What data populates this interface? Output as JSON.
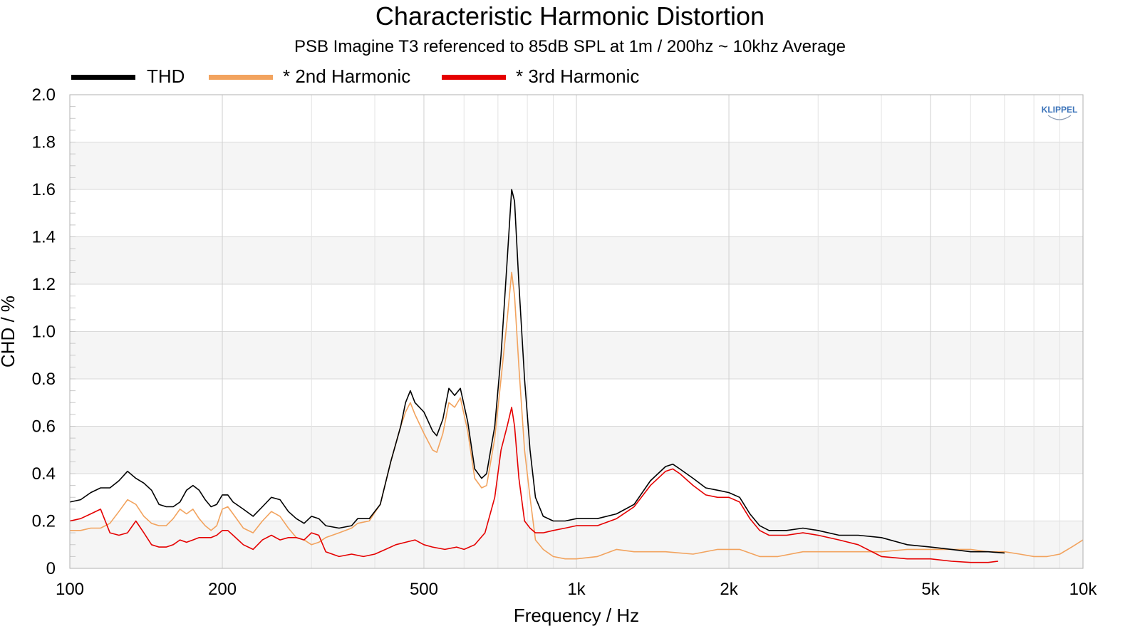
{
  "chart_data": {
    "type": "line",
    "title": "Characteristic Harmonic Distortion",
    "subtitle": "PSB Imagine T3 referenced to 85dB SPL at 1m / 200hz ~ 10khz Average",
    "xlabel": "Frequency / Hz",
    "ylabel": "CHD / %",
    "x_scale": "log",
    "xlim": [
      100,
      10000
    ],
    "ylim": [
      0,
      2.0
    ],
    "x_tick_values": [
      100,
      200,
      500,
      1000,
      2000,
      5000,
      10000
    ],
    "x_tick_labels": [
      "100",
      "200",
      "500",
      "1k",
      "2k",
      "5k",
      "10k"
    ],
    "y_tick_values": [
      0,
      0.2,
      0.4,
      0.6,
      0.8,
      1.0,
      1.2,
      1.4,
      1.6,
      1.8,
      2.0
    ],
    "y_tick_labels": [
      "0",
      "0.2",
      "0.4",
      "0.6",
      "0.8",
      "1.0",
      "1.2",
      "1.4",
      "1.6",
      "1.8",
      "2.0"
    ],
    "grid": true,
    "legend_position": "top-left",
    "watermark": "KLIPPEL",
    "series": [
      {
        "name": "THD",
        "color": "#000000",
        "points": [
          [
            100,
            0.28
          ],
          [
            105,
            0.29
          ],
          [
            110,
            0.32
          ],
          [
            115,
            0.34
          ],
          [
            120,
            0.34
          ],
          [
            125,
            0.37
          ],
          [
            130,
            0.41
          ],
          [
            135,
            0.38
          ],
          [
            140,
            0.36
          ],
          [
            145,
            0.33
          ],
          [
            150,
            0.27
          ],
          [
            155,
            0.26
          ],
          [
            160,
            0.26
          ],
          [
            165,
            0.28
          ],
          [
            170,
            0.33
          ],
          [
            175,
            0.35
          ],
          [
            180,
            0.33
          ],
          [
            185,
            0.29
          ],
          [
            190,
            0.26
          ],
          [
            195,
            0.27
          ],
          [
            200,
            0.31
          ],
          [
            205,
            0.31
          ],
          [
            210,
            0.28
          ],
          [
            220,
            0.25
          ],
          [
            230,
            0.22
          ],
          [
            240,
            0.26
          ],
          [
            250,
            0.3
          ],
          [
            260,
            0.29
          ],
          [
            270,
            0.24
          ],
          [
            280,
            0.21
          ],
          [
            290,
            0.19
          ],
          [
            300,
            0.22
          ],
          [
            310,
            0.21
          ],
          [
            320,
            0.18
          ],
          [
            340,
            0.17
          ],
          [
            360,
            0.18
          ],
          [
            370,
            0.21
          ],
          [
            390,
            0.21
          ],
          [
            410,
            0.27
          ],
          [
            430,
            0.45
          ],
          [
            450,
            0.6
          ],
          [
            460,
            0.7
          ],
          [
            470,
            0.75
          ],
          [
            480,
            0.7
          ],
          [
            500,
            0.66
          ],
          [
            520,
            0.58
          ],
          [
            530,
            0.56
          ],
          [
            545,
            0.63
          ],
          [
            560,
            0.76
          ],
          [
            575,
            0.73
          ],
          [
            590,
            0.76
          ],
          [
            610,
            0.62
          ],
          [
            630,
            0.42
          ],
          [
            650,
            0.38
          ],
          [
            665,
            0.4
          ],
          [
            690,
            0.6
          ],
          [
            710,
            0.9
          ],
          [
            730,
            1.3
          ],
          [
            745,
            1.6
          ],
          [
            755,
            1.55
          ],
          [
            770,
            1.2
          ],
          [
            790,
            0.8
          ],
          [
            810,
            0.5
          ],
          [
            830,
            0.3
          ],
          [
            860,
            0.22
          ],
          [
            900,
            0.2
          ],
          [
            950,
            0.2
          ],
          [
            1000,
            0.21
          ],
          [
            1100,
            0.21
          ],
          [
            1200,
            0.23
          ],
          [
            1300,
            0.27
          ],
          [
            1400,
            0.37
          ],
          [
            1500,
            0.43
          ],
          [
            1550,
            0.44
          ],
          [
            1600,
            0.42
          ],
          [
            1700,
            0.38
          ],
          [
            1800,
            0.34
          ],
          [
            1900,
            0.33
          ],
          [
            2000,
            0.32
          ],
          [
            2100,
            0.3
          ],
          [
            2200,
            0.23
          ],
          [
            2300,
            0.18
          ],
          [
            2400,
            0.16
          ],
          [
            2600,
            0.16
          ],
          [
            2800,
            0.17
          ],
          [
            3000,
            0.16
          ],
          [
            3300,
            0.14
          ],
          [
            3600,
            0.14
          ],
          [
            4000,
            0.13
          ],
          [
            4500,
            0.1
          ],
          [
            5000,
            0.09
          ],
          [
            5500,
            0.08
          ],
          [
            6000,
            0.07
          ],
          [
            6500,
            0.07
          ],
          [
            7000,
            0.065
          ]
        ]
      },
      {
        "name": "* 2nd Harmonic",
        "color": "#f2a35e",
        "points": [
          [
            100,
            0.16
          ],
          [
            105,
            0.16
          ],
          [
            110,
            0.17
          ],
          [
            115,
            0.17
          ],
          [
            120,
            0.19
          ],
          [
            125,
            0.24
          ],
          [
            130,
            0.29
          ],
          [
            135,
            0.27
          ],
          [
            140,
            0.22
          ],
          [
            145,
            0.19
          ],
          [
            150,
            0.18
          ],
          [
            155,
            0.18
          ],
          [
            160,
            0.21
          ],
          [
            165,
            0.25
          ],
          [
            170,
            0.23
          ],
          [
            175,
            0.25
          ],
          [
            180,
            0.21
          ],
          [
            185,
            0.18
          ],
          [
            190,
            0.16
          ],
          [
            195,
            0.18
          ],
          [
            200,
            0.25
          ],
          [
            205,
            0.26
          ],
          [
            210,
            0.23
          ],
          [
            220,
            0.17
          ],
          [
            230,
            0.15
          ],
          [
            240,
            0.2
          ],
          [
            250,
            0.24
          ],
          [
            260,
            0.22
          ],
          [
            270,
            0.17
          ],
          [
            280,
            0.13
          ],
          [
            290,
            0.12
          ],
          [
            300,
            0.1
          ],
          [
            310,
            0.11
          ],
          [
            320,
            0.13
          ],
          [
            340,
            0.15
          ],
          [
            360,
            0.17
          ],
          [
            370,
            0.19
          ],
          [
            390,
            0.2
          ],
          [
            410,
            0.27
          ],
          [
            430,
            0.45
          ],
          [
            450,
            0.6
          ],
          [
            460,
            0.66
          ],
          [
            470,
            0.7
          ],
          [
            480,
            0.65
          ],
          [
            500,
            0.57
          ],
          [
            520,
            0.5
          ],
          [
            530,
            0.49
          ],
          [
            545,
            0.57
          ],
          [
            560,
            0.7
          ],
          [
            575,
            0.68
          ],
          [
            590,
            0.72
          ],
          [
            610,
            0.58
          ],
          [
            630,
            0.38
          ],
          [
            650,
            0.34
          ],
          [
            665,
            0.35
          ],
          [
            690,
            0.55
          ],
          [
            710,
            0.8
          ],
          [
            730,
            1.05
          ],
          [
            745,
            1.25
          ],
          [
            755,
            1.15
          ],
          [
            770,
            0.85
          ],
          [
            790,
            0.5
          ],
          [
            810,
            0.3
          ],
          [
            830,
            0.12
          ],
          [
            860,
            0.08
          ],
          [
            900,
            0.05
          ],
          [
            950,
            0.04
          ],
          [
            1000,
            0.04
          ],
          [
            1100,
            0.05
          ],
          [
            1200,
            0.08
          ],
          [
            1300,
            0.07
          ],
          [
            1400,
            0.07
          ],
          [
            1500,
            0.07
          ],
          [
            1700,
            0.06
          ],
          [
            1900,
            0.08
          ],
          [
            2100,
            0.08
          ],
          [
            2300,
            0.05
          ],
          [
            2500,
            0.05
          ],
          [
            2800,
            0.07
          ],
          [
            3200,
            0.07
          ],
          [
            3600,
            0.07
          ],
          [
            4000,
            0.07
          ],
          [
            4500,
            0.08
          ],
          [
            5000,
            0.08
          ],
          [
            5500,
            0.08
          ],
          [
            6000,
            0.08
          ],
          [
            6500,
            0.07
          ],
          [
            7000,
            0.07
          ],
          [
            7500,
            0.06
          ],
          [
            8000,
            0.05
          ],
          [
            8500,
            0.05
          ],
          [
            9000,
            0.06
          ],
          [
            9500,
            0.09
          ],
          [
            10000,
            0.12
          ]
        ]
      },
      {
        "name": "* 3rd Harmonic",
        "color": "#e50000",
        "points": [
          [
            100,
            0.2
          ],
          [
            105,
            0.21
          ],
          [
            110,
            0.23
          ],
          [
            115,
            0.25
          ],
          [
            120,
            0.15
          ],
          [
            125,
            0.14
          ],
          [
            130,
            0.15
          ],
          [
            135,
            0.2
          ],
          [
            140,
            0.15
          ],
          [
            145,
            0.1
          ],
          [
            150,
            0.09
          ],
          [
            155,
            0.09
          ],
          [
            160,
            0.1
          ],
          [
            165,
            0.12
          ],
          [
            170,
            0.11
          ],
          [
            175,
            0.12
          ],
          [
            180,
            0.13
          ],
          [
            185,
            0.13
          ],
          [
            190,
            0.13
          ],
          [
            195,
            0.14
          ],
          [
            200,
            0.16
          ],
          [
            205,
            0.16
          ],
          [
            210,
            0.14
          ],
          [
            220,
            0.1
          ],
          [
            230,
            0.08
          ],
          [
            240,
            0.12
          ],
          [
            250,
            0.14
          ],
          [
            260,
            0.12
          ],
          [
            270,
            0.13
          ],
          [
            280,
            0.13
          ],
          [
            290,
            0.12
          ],
          [
            300,
            0.15
          ],
          [
            310,
            0.14
          ],
          [
            320,
            0.07
          ],
          [
            340,
            0.05
          ],
          [
            360,
            0.06
          ],
          [
            380,
            0.05
          ],
          [
            400,
            0.06
          ],
          [
            420,
            0.08
          ],
          [
            440,
            0.1
          ],
          [
            460,
            0.11
          ],
          [
            480,
            0.12
          ],
          [
            500,
            0.1
          ],
          [
            520,
            0.09
          ],
          [
            550,
            0.08
          ],
          [
            580,
            0.09
          ],
          [
            600,
            0.08
          ],
          [
            630,
            0.1
          ],
          [
            660,
            0.15
          ],
          [
            690,
            0.3
          ],
          [
            710,
            0.5
          ],
          [
            730,
            0.6
          ],
          [
            745,
            0.68
          ],
          [
            755,
            0.6
          ],
          [
            770,
            0.38
          ],
          [
            790,
            0.2
          ],
          [
            810,
            0.17
          ],
          [
            830,
            0.15
          ],
          [
            860,
            0.15
          ],
          [
            900,
            0.16
          ],
          [
            950,
            0.17
          ],
          [
            1000,
            0.18
          ],
          [
            1100,
            0.18
          ],
          [
            1200,
            0.21
          ],
          [
            1300,
            0.26
          ],
          [
            1400,
            0.35
          ],
          [
            1500,
            0.41
          ],
          [
            1550,
            0.42
          ],
          [
            1600,
            0.4
          ],
          [
            1700,
            0.35
          ],
          [
            1800,
            0.31
          ],
          [
            1900,
            0.3
          ],
          [
            2000,
            0.3
          ],
          [
            2100,
            0.28
          ],
          [
            2200,
            0.21
          ],
          [
            2300,
            0.16
          ],
          [
            2400,
            0.14
          ],
          [
            2600,
            0.14
          ],
          [
            2800,
            0.15
          ],
          [
            3000,
            0.14
          ],
          [
            3300,
            0.12
          ],
          [
            3600,
            0.1
          ],
          [
            4000,
            0.05
          ],
          [
            4500,
            0.04
          ],
          [
            5000,
            0.04
          ],
          [
            5500,
            0.03
          ],
          [
            6000,
            0.025
          ],
          [
            6500,
            0.025
          ],
          [
            6800,
            0.03
          ]
        ]
      }
    ]
  }
}
